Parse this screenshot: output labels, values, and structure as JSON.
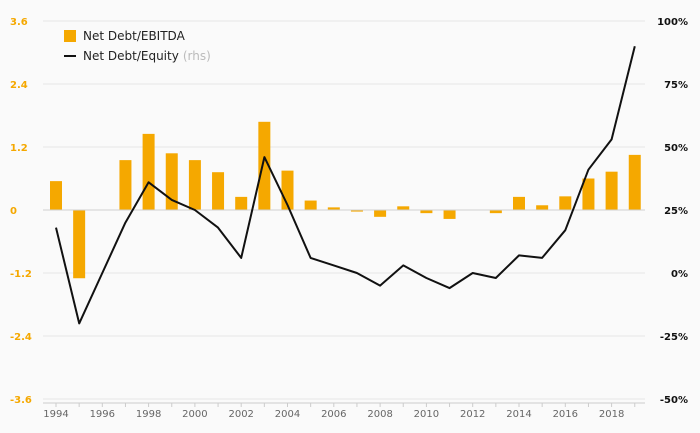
{
  "chart_data": {
    "type": "bar+line",
    "x": [
      1994,
      1995,
      1996,
      1997,
      1998,
      1999,
      2000,
      2001,
      2002,
      2003,
      2004,
      2005,
      2006,
      2007,
      2008,
      2009,
      2010,
      2011,
      2012,
      2013,
      2014,
      2015,
      2016,
      2017,
      2018,
      2019
    ],
    "x_tick_labels": [
      "1994",
      "1996",
      "1998",
      "2000",
      "2002",
      "2004",
      "2006",
      "2008",
      "2010",
      "2012",
      "2014",
      "2016",
      "2018"
    ],
    "series": [
      {
        "name": "Net Debt/EBITDA",
        "type": "bar",
        "axis": "left",
        "color": "#f5a800",
        "values": [
          0.55,
          -1.3,
          null,
          0.95,
          1.45,
          1.08,
          0.95,
          0.72,
          0.25,
          1.68,
          0.75,
          0.18,
          0.05,
          -0.03,
          -0.13,
          0.07,
          -0.06,
          -0.17,
          null,
          -0.06,
          0.25,
          0.09,
          0.26,
          0.6,
          0.73,
          1.05
        ]
      },
      {
        "name": "Net Debt/Equity",
        "name_suffix": "(rhs)",
        "type": "line",
        "axis": "right",
        "color": "#111111",
        "values": [
          18,
          -20,
          0,
          20,
          36,
          29,
          25,
          18,
          6,
          46,
          27,
          6,
          3,
          0,
          -5,
          3,
          -2,
          -6,
          0,
          -2,
          7,
          6,
          17,
          41,
          53,
          90
        ]
      }
    ],
    "left_axis": {
      "min": -3.6,
      "max": 3.6,
      "tick_labels": [
        "3.6",
        "2.4",
        "1.2",
        "0",
        "-1.2",
        "-2.4",
        "-3.6"
      ],
      "ticks": [
        3.6,
        2.4,
        1.2,
        0,
        -1.2,
        -2.4,
        -3.6
      ]
    },
    "right_axis": {
      "min": -50,
      "max": 100,
      "tick_labels": [
        "100%",
        "75%",
        "50%",
        "25%",
        "0%",
        "-25%",
        "-50%"
      ],
      "ticks": [
        100,
        75,
        50,
        25,
        0,
        -25,
        -50
      ]
    },
    "grid": true,
    "legend_position": "top-left"
  }
}
